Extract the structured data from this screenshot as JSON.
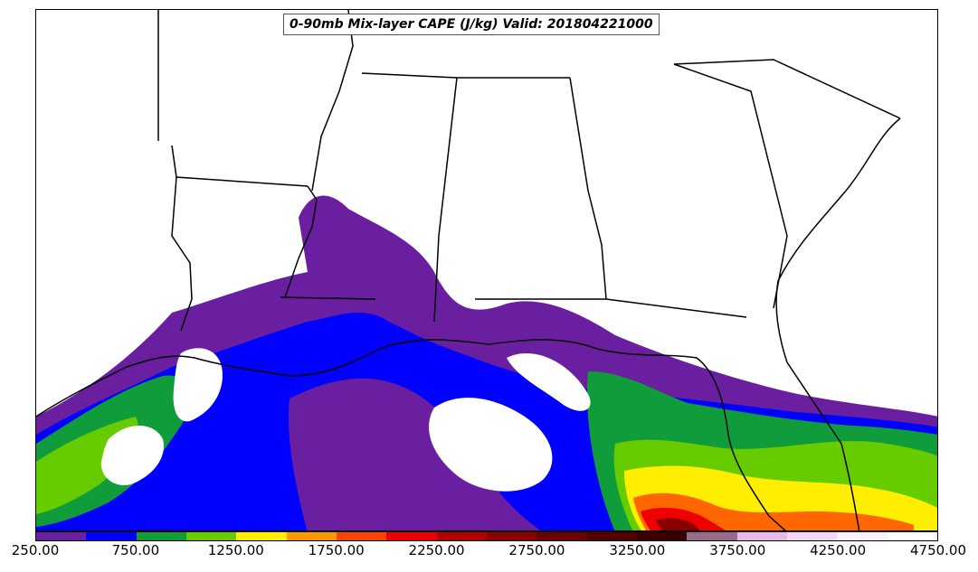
{
  "title": "0-90mb Mix-layer CAPE (J/kg) Valid: 201804221000",
  "colorbar": {
    "colors": [
      "#6a1fa0",
      "#0000ff",
      "#119c3c",
      "#66cc00",
      "#ffee00",
      "#ff9900",
      "#ff4400",
      "#ee0000",
      "#b00000",
      "#8b0000",
      "#6b0000",
      "#550000",
      "#3a0000",
      "#9a6a8a",
      "#e8b8e8",
      "#f6d6f6",
      "#fdf0fd",
      "#ffffff"
    ],
    "labels": [
      "250.00",
      "750.00",
      "1250.00",
      "1750.00",
      "2250.00",
      "2750.00",
      "3250.00",
      "3750.00",
      "4250.00",
      "4750.00"
    ]
  },
  "field_colors": {
    "purple": "#6a1fa0",
    "blue": "#0000ff",
    "green": "#119c3c",
    "lime": "#66cc00",
    "yellow": "#ffee00",
    "orange": "#ff6600",
    "red": "#ee0000",
    "darkred": "#880000",
    "white": "#ffffff"
  }
}
